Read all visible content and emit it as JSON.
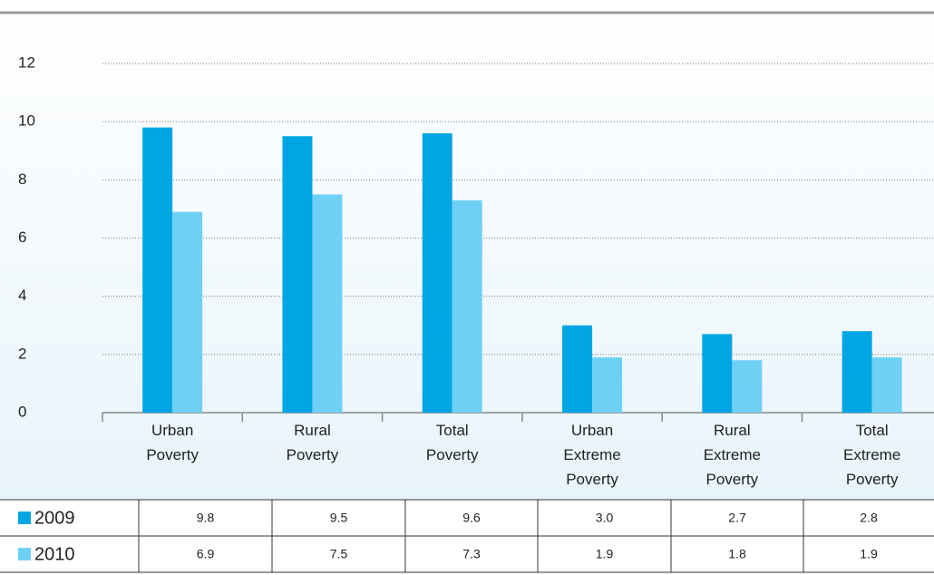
{
  "chart_data": {
    "type": "bar",
    "categories": [
      "Urban Poverty",
      "Rural Poverty",
      "Total Poverty",
      "Urban Extreme Poverty",
      "Rural Extreme Poverty",
      "Total Extreme Poverty"
    ],
    "series": [
      {
        "name": "2009",
        "color": "#00a6e3",
        "values": [
          9.8,
          9.5,
          9.6,
          3.0,
          2.7,
          2.8
        ],
        "value_labels": [
          "9.8",
          "9.5",
          "9.6",
          "3.0",
          "2.7",
          "2.8"
        ]
      },
      {
        "name": "2010",
        "color": "#6fd0f6",
        "values": [
          6.9,
          7.5,
          7.3,
          1.9,
          1.8,
          1.9
        ],
        "value_labels": [
          "6.9",
          "7.5",
          "7.3",
          "1.9",
          "1.8",
          "1.9"
        ]
      }
    ],
    "ylim": [
      0,
      12
    ],
    "yticks": [
      0,
      2,
      4,
      6,
      8,
      10,
      12
    ],
    "grid": true
  }
}
